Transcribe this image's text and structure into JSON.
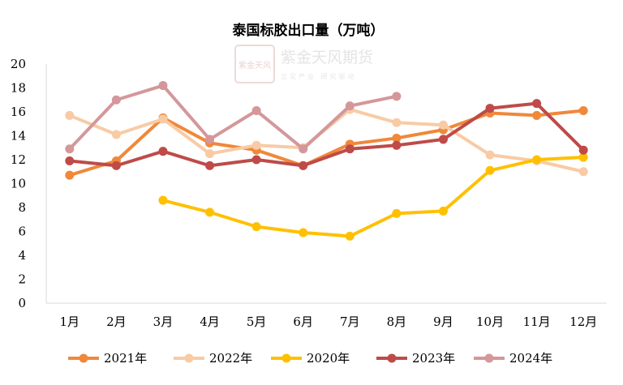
{
  "chart_data": {
    "type": "line",
    "title": "泰国标胶出口量（万吨）",
    "categories": [
      "1月",
      "2月",
      "3月",
      "4月",
      "5月",
      "6月",
      "7月",
      "8月",
      "9月",
      "10月",
      "11月",
      "12月"
    ],
    "ylim": [
      0,
      20
    ],
    "yticks": [
      0,
      2,
      4,
      6,
      8,
      10,
      12,
      14,
      16,
      18,
      20
    ],
    "grid": false,
    "legend_position": "bottom",
    "series": [
      {
        "name": "2021年",
        "color": "#F0883A",
        "values": [
          10.7,
          11.9,
          15.5,
          13.4,
          12.8,
          11.5,
          13.3,
          13.8,
          14.5,
          15.9,
          15.7,
          16.1
        ]
      },
      {
        "name": "2022年",
        "color": "#F8CBA5",
        "values": [
          15.7,
          14.1,
          15.4,
          12.5,
          13.2,
          13.0,
          16.2,
          15.1,
          14.9,
          12.4,
          11.9,
          11.0
        ]
      },
      {
        "name": "2020年",
        "color": "#FFC000",
        "values": [
          null,
          null,
          8.6,
          7.6,
          6.4,
          5.9,
          5.6,
          7.5,
          7.7,
          11.1,
          12.0,
          12.2
        ]
      },
      {
        "name": "2023年",
        "color": "#BE4B48",
        "values": [
          11.9,
          11.5,
          12.7,
          11.5,
          12.0,
          11.5,
          12.9,
          13.2,
          13.7,
          16.3,
          16.7,
          12.8
        ]
      },
      {
        "name": "2024年",
        "color": "#D4979A",
        "values": [
          12.9,
          17.0,
          18.2,
          13.7,
          16.1,
          12.9,
          16.5,
          17.3,
          null,
          null,
          null,
          null
        ]
      }
    ]
  },
  "watermark": {
    "logo_text": "紫金天风",
    "company": "紫金天风期货",
    "slogan": "立足产业 研究驱动"
  }
}
